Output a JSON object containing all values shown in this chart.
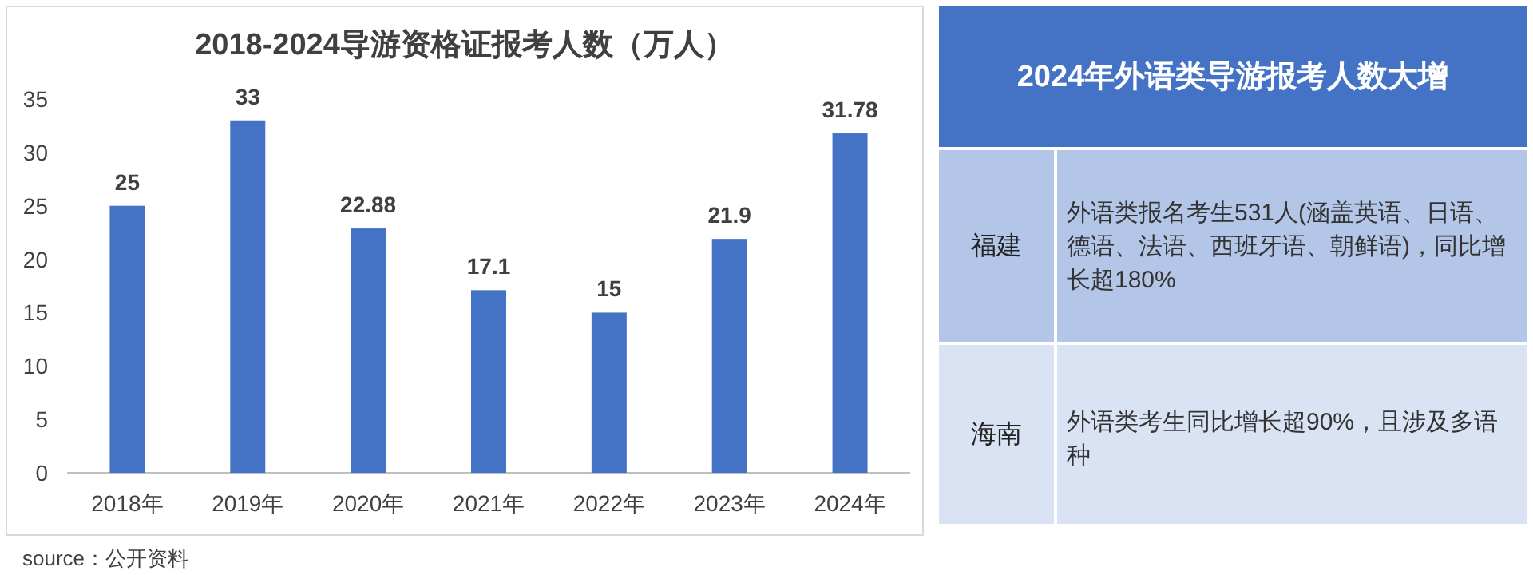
{
  "chart_data": [
    {
      "type": "bar",
      "title": "2018-2024导游资格证报考人数（万人）",
      "categories": [
        "2018年",
        "2019年",
        "2020年",
        "2021年",
        "2022年",
        "2023年",
        "2024年"
      ],
      "values": [
        25,
        33,
        22.88,
        17.1,
        15,
        21.9,
        31.78
      ],
      "color": "#4472c4",
      "ylim": [
        0,
        35
      ],
      "yticks": [
        0,
        5,
        10,
        15,
        20,
        25,
        30,
        35
      ],
      "grid": false,
      "data_labels": true,
      "annotations": [
        "source：公开资料"
      ]
    },
    {
      "type": "other",
      "title": "2024年外语类导游报考人数大增",
      "annotations": [
        "福建",
        "外语类报名考生531人(涵盖英语、日语、德语、法语、西班牙语、朝鲜语)，同比增长超180%",
        "海南",
        "外语类考生同比增长超90%，且涉及多语种"
      ]
    }
  ]
}
